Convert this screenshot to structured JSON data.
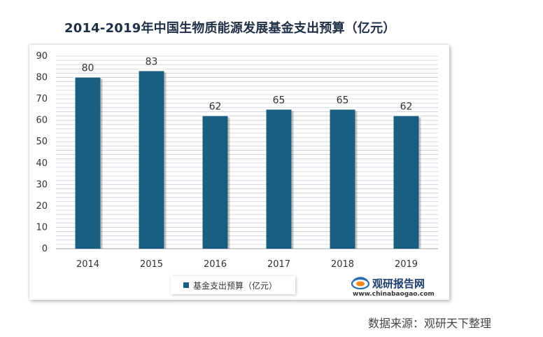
{
  "title": "2014-2019年中国生物质能源发展基金支出预算（亿元）",
  "source": "数据来源：观研天下整理",
  "watermark": {
    "brand": "观研报告网",
    "url": "www.chinabaogao.com"
  },
  "colors": {
    "bar": "#1a5f80",
    "grid": "#c9d0da",
    "text": "#333333"
  },
  "chart_data": {
    "type": "bar",
    "categories": [
      "2014",
      "2015",
      "2016",
      "2017",
      "2018",
      "2019"
    ],
    "series": [
      {
        "name": "基金支出预算（亿元）",
        "values": [
          80,
          83,
          62,
          65,
          65,
          62
        ]
      }
    ],
    "ylim": [
      0,
      90
    ],
    "yticks": [
      0,
      10,
      20,
      30,
      40,
      50,
      60,
      70,
      80,
      90
    ],
    "data_labels": true,
    "grid": true,
    "legend_position": "bottom"
  }
}
